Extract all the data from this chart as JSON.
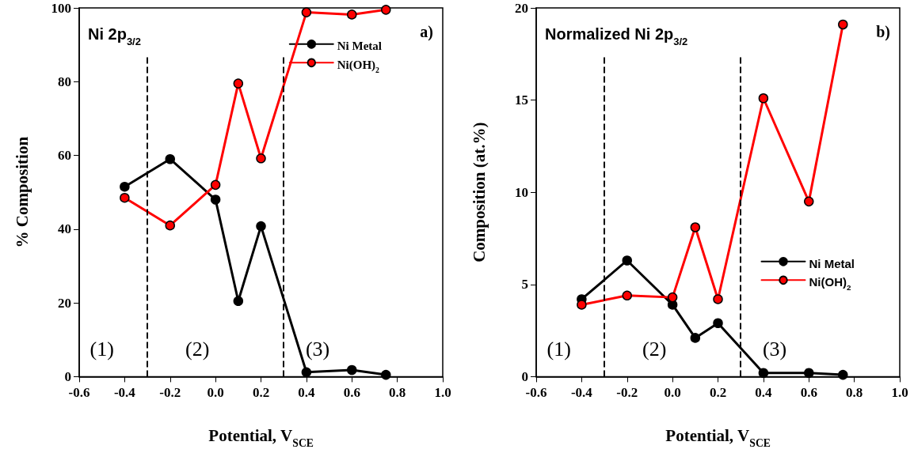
{
  "chart_data": [
    {
      "type": "line",
      "title": "Ni 2p$_{3/2}$",
      "xlabel": "Potential, V$_{SCE}$",
      "ylabel": "% Composition",
      "x": [
        -0.4,
        -0.2,
        0.0,
        0.1,
        0.2,
        0.4,
        0.6,
        0.75
      ],
      "series": [
        {
          "name": "Ni Metal",
          "color": "#000000",
          "values": [
            51.5,
            59,
            48,
            20.5,
            40.8,
            1.2,
            1.8,
            0.5
          ]
        },
        {
          "name": "Ni(OH)$_{2}$",
          "color": "#ff0000",
          "values": [
            48.5,
            41,
            52,
            79.5,
            59.2,
            98.8,
            98.2,
            99.5
          ]
        }
      ],
      "xlim": [
        -0.6,
        1.0
      ],
      "xticks": [
        {
          "value": -0.6,
          "label": "-0.6"
        },
        {
          "value": -0.4,
          "label": "-0.4"
        },
        {
          "value": -0.2,
          "label": "-0.2"
        },
        {
          "value": 0,
          "label": "0.0"
        },
        {
          "value": 0.2,
          "label": "0.2"
        },
        {
          "value": 0.4,
          "label": "0.4"
        },
        {
          "value": 0.6,
          "label": "0.6"
        },
        {
          "value": 0.8,
          "label": "0.8"
        },
        {
          "value": 1.0,
          "label": "1.0"
        }
      ],
      "ylim": [
        0,
        100
      ],
      "yticks": [
        0,
        20,
        40,
        60,
        80,
        100
      ],
      "ref_lines": [
        {
          "axis": "x",
          "value": -0.3,
          "color": "#000000",
          "line_style": "dashed"
        },
        {
          "axis": "x",
          "value": 0.3,
          "color": "#000000",
          "line_style": "dashed"
        }
      ],
      "annotations": [
        "(1)",
        "(2)",
        "(3)",
        "a)"
      ],
      "legend": "top right",
      "marker": "circle",
      "line_style": "solid",
      "grid": false
    },
    {
      "type": "line",
      "title": "Normalized Ni 2p$_{3/2}$",
      "xlabel": "Potential, V$_{SCE}$",
      "ylabel": "Composition (at.%)",
      "x": [
        -0.4,
        -0.2,
        0.0,
        0.1,
        0.2,
        0.4,
        0.6,
        0.75
      ],
      "series": [
        {
          "name": "Ni Metal",
          "color": "#000000",
          "values": [
            4.2,
            6.3,
            3.9,
            2.1,
            2.9,
            0.2,
            0.2,
            0.1
          ]
        },
        {
          "name": "Ni(OH)$_{2}$",
          "color": "#ff0000",
          "values": [
            3.9,
            4.4,
            4.3,
            8.1,
            4.2,
            15.1,
            9.5,
            19.1
          ]
        }
      ],
      "xlim": [
        -0.6,
        1.0
      ],
      "xticks": [
        {
          "value": -0.6,
          "label": "-0.6"
        },
        {
          "value": -0.4,
          "label": "-0.4"
        },
        {
          "value": -0.2,
          "label": "-0.2"
        },
        {
          "value": 0,
          "label": "0.0"
        },
        {
          "value": 0.2,
          "label": "0.2"
        },
        {
          "value": 0.4,
          "label": "0.4"
        },
        {
          "value": 0.6,
          "label": "0.6"
        },
        {
          "value": 0.8,
          "label": "0.8"
        },
        {
          "value": 1.0,
          "label": "1.0"
        }
      ],
      "ylim": [
        0,
        20
      ],
      "yticks": [
        0,
        5,
        10,
        15,
        20
      ],
      "ref_lines": [
        {
          "axis": "x",
          "value": -0.3,
          "color": "#000000",
          "line_style": "dashed"
        },
        {
          "axis": "x",
          "value": 0.3,
          "color": "#000000",
          "line_style": "dashed"
        }
      ],
      "annotations": [
        "(1)",
        "(2)",
        "(3)",
        "b)"
      ],
      "legend": "right",
      "marker": "circle",
      "line_style": "solid",
      "grid": false
    }
  ]
}
